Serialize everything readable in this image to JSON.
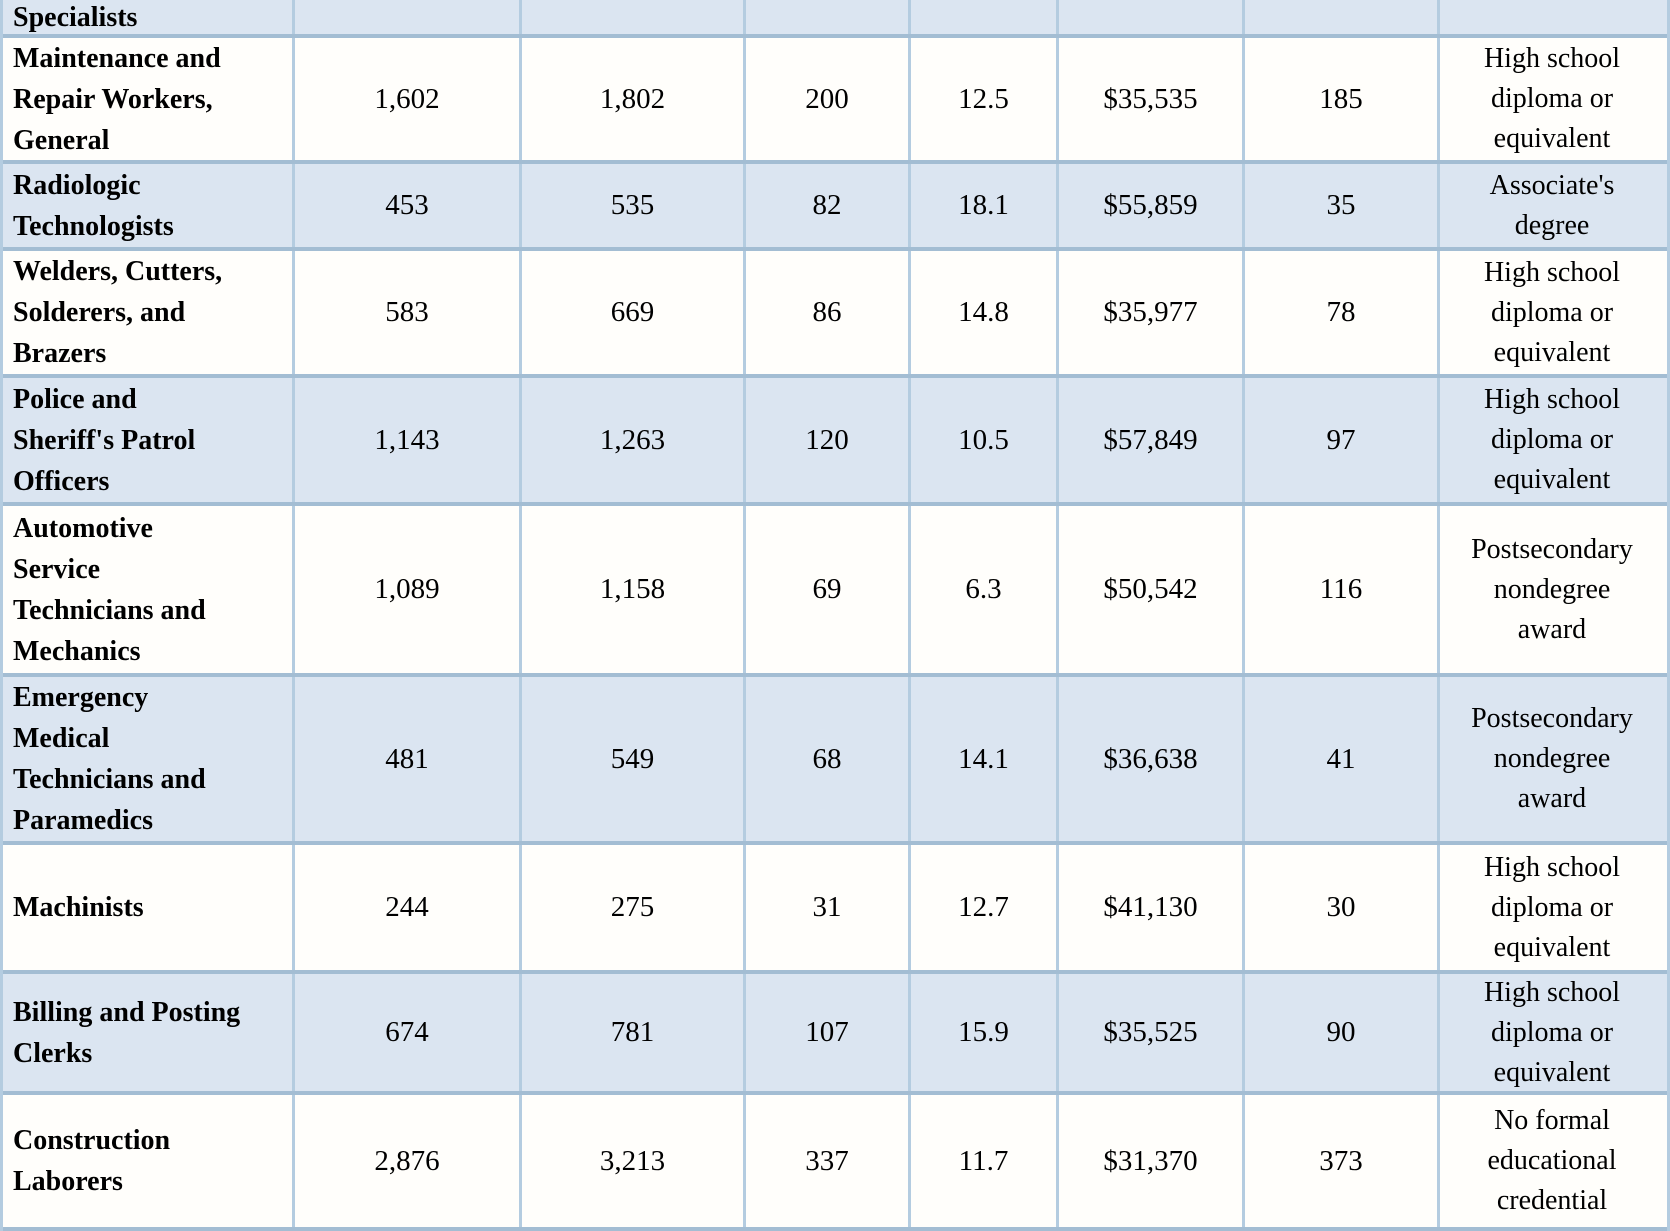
{
  "colors": {
    "shaded_row_bg": "#dbe5f1",
    "plain_row_bg": "#fffefb",
    "horizontal_border": "#a3bdd3",
    "vertical_border": "#b4cce0",
    "text": "#000000"
  },
  "table": {
    "rows": [
      {
        "occupation": "Specialists",
        "values": [
          "",
          "",
          "",
          "",
          "",
          ""
        ],
        "education": ""
      },
      {
        "occupation": "Maintenance and\nRepair Workers,\nGeneral",
        "values": [
          "1,602",
          "1,802",
          "200",
          "12.5",
          "$35,535",
          "185"
        ],
        "education": "High school\ndiploma or\nequivalent"
      },
      {
        "occupation": "Radiologic\nTechnologists",
        "values": [
          "453",
          "535",
          "82",
          "18.1",
          "$55,859",
          "35"
        ],
        "education": "Associate's\ndegree"
      },
      {
        "occupation": "Welders, Cutters,\nSolderers, and\nBrazers",
        "values": [
          "583",
          "669",
          "86",
          "14.8",
          "$35,977",
          "78"
        ],
        "education": "High school\ndiploma or\nequivalent"
      },
      {
        "occupation": "Police and\nSheriff's Patrol\nOfficers",
        "values": [
          "1,143",
          "1,263",
          "120",
          "10.5",
          "$57,849",
          "97"
        ],
        "education": "High school\ndiploma or\nequivalent"
      },
      {
        "occupation": "Automotive\nService\nTechnicians and\nMechanics",
        "values": [
          "1,089",
          "1,158",
          "69",
          "6.3",
          "$50,542",
          "116"
        ],
        "education": "Postsecondary\nnondegree\naward"
      },
      {
        "occupation": "Emergency\nMedical\nTechnicians and\nParamedics",
        "values": [
          "481",
          "549",
          "68",
          "14.1",
          "$36,638",
          "41"
        ],
        "education": "Postsecondary\nnondegree\naward"
      },
      {
        "occupation": "Machinists",
        "values": [
          "244",
          "275",
          "31",
          "12.7",
          "$41,130",
          "30"
        ],
        "education": "High school\ndiploma or\nequivalent"
      },
      {
        "occupation": "Billing and Posting\nClerks",
        "values": [
          "674",
          "781",
          "107",
          "15.9",
          "$35,525",
          "90"
        ],
        "education": "High school\ndiploma or\nequivalent"
      },
      {
        "occupation": "Construction\nLaborers",
        "values": [
          "2,876",
          "3,213",
          "337",
          "11.7",
          "$31,370",
          "373"
        ],
        "education": "No formal\neducational\ncredential"
      }
    ]
  }
}
